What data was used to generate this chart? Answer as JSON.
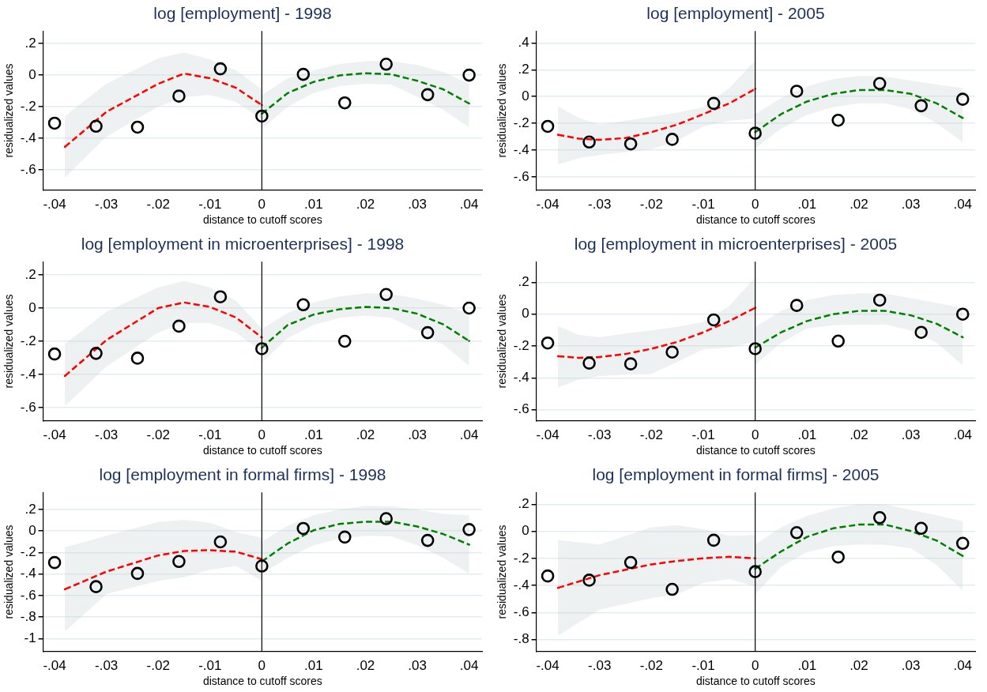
{
  "chart_data": [
    {
      "type": "scatter",
      "title": "log [employment] - 1998",
      "xlabel": "distance to cutoff scores",
      "ylabel": "residualized values",
      "xlim": [
        -0.0422,
        0.0425
      ],
      "ylim": [
        -0.73,
        0.28
      ],
      "xticks": [
        {
          "value": -0.04,
          "label": "-.04"
        },
        {
          "value": -0.03,
          "label": "-.03"
        },
        {
          "value": -0.02,
          "label": "-.02"
        },
        {
          "value": -0.01,
          "label": "-.01"
        },
        {
          "value": 0,
          "label": "0"
        },
        {
          "value": 0.01,
          "label": ".01"
        },
        {
          "value": 0.02,
          "label": ".02"
        },
        {
          "value": 0.03,
          "label": ".03"
        },
        {
          "value": 0.04,
          "label": ".04"
        }
      ],
      "yticks": [
        {
          "value": -0.6,
          "label": "-.6"
        },
        {
          "value": -0.4,
          "label": "-.4"
        },
        {
          "value": -0.2,
          "label": "-.2"
        },
        {
          "value": 0,
          "label": "0"
        },
        {
          "value": 0.2,
          "label": ".2"
        }
      ],
      "grid": "y",
      "legend": false,
      "ref_lines": [
        {
          "axis": "x",
          "value": 0,
          "color": "#000000"
        }
      ],
      "series": [
        {
          "type": "scatter",
          "marker": "circle",
          "color": "#000000",
          "x": [
            -0.04,
            -0.032,
            -0.024,
            -0.016,
            -0.008,
            0,
            0.008,
            0.016,
            0.024,
            0.032,
            0.04
          ],
          "values": [
            -0.305,
            -0.324,
            -0.33,
            -0.133,
            0.04,
            -0.26,
            0.005,
            -0.176,
            0.069,
            -0.124,
            0
          ]
        },
        {
          "type": "line",
          "marker": "none",
          "line_style": "dashed",
          "color": "#ff0000",
          "x": [
            -0.038,
            -0.03,
            -0.02,
            -0.015,
            -0.01,
            -0.005,
            0
          ],
          "values": [
            -0.455,
            -0.233,
            -0.055,
            0.01,
            -0.02,
            -0.08,
            -0.19
          ],
          "lower": [
            -0.65,
            -0.39,
            -0.2,
            -0.14,
            -0.126,
            -0.17,
            -0.28
          ],
          "upper": [
            -0.26,
            -0.055,
            0.107,
            0.143,
            0.1,
            0.03,
            -0.09
          ]
        },
        {
          "type": "line",
          "marker": "none",
          "line_style": "dashed",
          "color": "#008000",
          "x": [
            0,
            0.005,
            0.01,
            0.015,
            0.02,
            0.025,
            0.03,
            0.035,
            0.04
          ],
          "values": [
            -0.245,
            -0.114,
            -0.043,
            -0.002,
            0.012,
            0.005,
            -0.036,
            -0.09,
            -0.18
          ],
          "lower": [
            -0.34,
            -0.2,
            -0.114,
            -0.07,
            -0.055,
            -0.06,
            -0.138,
            -0.22,
            -0.33
          ],
          "upper": [
            -0.126,
            -0.02,
            0.03,
            0.07,
            0.088,
            0.09,
            0.064,
            0.02,
            -0.055
          ]
        }
      ]
    },
    {
      "type": "scatter",
      "title": "log [employment] - 2005",
      "xlabel": "distance to cutoff scores",
      "ylabel": "residualized values",
      "xlim": [
        -0.0422,
        0.0424
      ],
      "ylim": [
        -0.7,
        0.49
      ],
      "xticks": [
        {
          "value": -0.04,
          "label": "-.04"
        },
        {
          "value": -0.03,
          "label": "-.03"
        },
        {
          "value": -0.02,
          "label": "-.02"
        },
        {
          "value": -0.01,
          "label": "-.01"
        },
        {
          "value": 0,
          "label": "0"
        },
        {
          "value": 0.01,
          "label": ".01"
        },
        {
          "value": 0.02,
          "label": ".02"
        },
        {
          "value": 0.03,
          "label": ".03"
        },
        {
          "value": 0.04,
          "label": ".04"
        }
      ],
      "yticks": [
        {
          "value": -0.6,
          "label": "-.6"
        },
        {
          "value": -0.4,
          "label": "-.4"
        },
        {
          "value": -0.2,
          "label": "-.2"
        },
        {
          "value": 0,
          "label": "0"
        },
        {
          "value": 0.2,
          "label": ".2"
        },
        {
          "value": 0.4,
          "label": ".4"
        }
      ],
      "grid": "y",
      "legend": false,
      "ref_lines": [
        {
          "axis": "x",
          "value": 0,
          "color": "#000000"
        }
      ],
      "series": [
        {
          "type": "scatter",
          "marker": "circle",
          "color": "#000000",
          "x": [
            -0.04,
            -0.032,
            -0.024,
            -0.016,
            -0.008,
            0,
            0.008,
            0.016,
            0.024,
            0.032,
            0.04
          ],
          "values": [
            -0.223,
            -0.34,
            -0.354,
            -0.32,
            -0.051,
            -0.274,
            0.04,
            -0.177,
            0.097,
            -0.069,
            -0.02
          ]
        },
        {
          "type": "line",
          "marker": "none",
          "line_style": "dashed",
          "color": "#ff0000",
          "x": [
            -0.038,
            -0.034,
            -0.03,
            -0.025,
            -0.02,
            -0.015,
            -0.01,
            -0.005,
            0
          ],
          "values": [
            -0.286,
            -0.314,
            -0.323,
            -0.31,
            -0.266,
            -0.209,
            -0.131,
            -0.051,
            0.057
          ],
          "lower": [
            -0.509,
            -0.46,
            -0.437,
            -0.415,
            -0.394,
            -0.33,
            -0.223,
            -0.18,
            -0.166
          ],
          "upper": [
            -0.074,
            -0.16,
            -0.209,
            -0.18,
            -0.151,
            -0.12,
            -0.08,
            0.063,
            0.269
          ]
        },
        {
          "type": "line",
          "marker": "none",
          "line_style": "dashed",
          "color": "#008000",
          "x": [
            0,
            0.005,
            0.01,
            0.015,
            0.02,
            0.025,
            0.03,
            0.035,
            0.04
          ],
          "values": [
            -0.266,
            -0.131,
            -0.037,
            0.02,
            0.049,
            0.049,
            0.02,
            -0.051,
            -0.16
          ],
          "lower": [
            -0.389,
            -0.24,
            -0.137,
            -0.08,
            -0.051,
            -0.05,
            -0.094,
            -0.2,
            -0.343
          ],
          "upper": [
            -0.131,
            -0.01,
            0.077,
            0.13,
            0.154,
            0.15,
            0.12,
            0.09,
            0.063
          ]
        }
      ]
    },
    {
      "type": "scatter",
      "title": "log [employment in microenterprises] - 1998",
      "xlabel": "distance to cutoff scores",
      "ylabel": "residualized values",
      "xlim": [
        -0.0422,
        0.0425
      ],
      "ylim": [
        -0.68,
        0.28
      ],
      "xticks": [
        {
          "value": -0.04,
          "label": "-.04"
        },
        {
          "value": -0.03,
          "label": "-.03"
        },
        {
          "value": -0.02,
          "label": "-.02"
        },
        {
          "value": -0.01,
          "label": "-.01"
        },
        {
          "value": 0,
          "label": "0"
        },
        {
          "value": 0.01,
          "label": ".01"
        },
        {
          "value": 0.02,
          "label": ".02"
        },
        {
          "value": 0.03,
          "label": ".03"
        },
        {
          "value": 0.04,
          "label": ".04"
        }
      ],
      "yticks": [
        {
          "value": -0.6,
          "label": "-.6"
        },
        {
          "value": -0.4,
          "label": "-.4"
        },
        {
          "value": -0.2,
          "label": "-.2"
        },
        {
          "value": 0,
          "label": "0"
        },
        {
          "value": 0.2,
          "label": ".2"
        }
      ],
      "grid": "y",
      "legend": false,
      "ref_lines": [
        {
          "axis": "x",
          "value": 0,
          "color": "#000000"
        }
      ],
      "series": [
        {
          "type": "scatter",
          "marker": "circle",
          "color": "#000000",
          "x": [
            -0.04,
            -0.032,
            -0.024,
            -0.016,
            -0.008,
            0,
            0.008,
            0.016,
            0.024,
            0.032,
            0.04
          ],
          "values": [
            -0.277,
            -0.273,
            -0.302,
            -0.109,
            0.068,
            -0.245,
            0.02,
            -0.2,
            0.082,
            -0.148,
            0
          ]
        },
        {
          "type": "line",
          "marker": "none",
          "line_style": "dashed",
          "color": "#ff0000",
          "x": [
            -0.038,
            -0.03,
            -0.02,
            -0.015,
            -0.01,
            -0.005,
            0
          ],
          "values": [
            -0.409,
            -0.193,
            0,
            0.034,
            0.007,
            -0.057,
            -0.177
          ],
          "lower": [
            -0.591,
            -0.352,
            -0.148,
            -0.091,
            -0.091,
            -0.148,
            -0.261
          ],
          "upper": [
            -0.216,
            -0.023,
            0.125,
            0.164,
            0.125,
            0.045,
            -0.125
          ]
        },
        {
          "type": "line",
          "marker": "none",
          "line_style": "dashed",
          "color": "#008000",
          "x": [
            0,
            0.005,
            0.01,
            0.015,
            0.02,
            0.025,
            0.03,
            0.035,
            0.04
          ],
          "values": [
            -0.239,
            -0.102,
            -0.039,
            -0.007,
            0.007,
            0,
            -0.034,
            -0.098,
            -0.198
          ],
          "lower": [
            -0.33,
            -0.18,
            -0.102,
            -0.06,
            -0.045,
            -0.06,
            -0.136,
            -0.22,
            -0.348
          ],
          "upper": [
            -0.125,
            -0.03,
            0.034,
            0.07,
            0.089,
            0.085,
            0.057,
            0.02,
            -0.034
          ]
        }
      ]
    },
    {
      "type": "scatter",
      "title": "log [employment in microenterprises] - 2005",
      "xlabel": "distance to cutoff scores",
      "ylabel": "residualized values",
      "xlim": [
        -0.0422,
        0.0424
      ],
      "ylim": [
        -0.67,
        0.33
      ],
      "xticks": [
        {
          "value": -0.04,
          "label": "-.04"
        },
        {
          "value": -0.03,
          "label": "-.03"
        },
        {
          "value": -0.02,
          "label": "-.02"
        },
        {
          "value": -0.01,
          "label": "-.01"
        },
        {
          "value": 0,
          "label": "0"
        },
        {
          "value": 0.01,
          "label": ".01"
        },
        {
          "value": 0.02,
          "label": ".02"
        },
        {
          "value": 0.03,
          "label": ".03"
        },
        {
          "value": 0.04,
          "label": ".04"
        }
      ],
      "yticks": [
        {
          "value": -0.6,
          "label": "-.6"
        },
        {
          "value": -0.4,
          "label": "-.4"
        },
        {
          "value": -0.2,
          "label": "-.2"
        },
        {
          "value": 0,
          "label": "0"
        },
        {
          "value": 0.2,
          "label": ".2"
        }
      ],
      "grid": "y",
      "legend": false,
      "ref_lines": [
        {
          "axis": "x",
          "value": 0,
          "color": "#000000"
        }
      ],
      "series": [
        {
          "type": "scatter",
          "marker": "circle",
          "color": "#000000",
          "x": [
            -0.04,
            -0.032,
            -0.024,
            -0.016,
            -0.008,
            0,
            0.008,
            0.016,
            0.024,
            0.032,
            0.04
          ],
          "values": [
            -0.181,
            -0.307,
            -0.312,
            -0.238,
            -0.036,
            -0.217,
            0.055,
            -0.169,
            0.088,
            -0.114,
            0
          ]
        },
        {
          "type": "line",
          "marker": "none",
          "line_style": "dashed",
          "color": "#ff0000",
          "x": [
            -0.038,
            -0.034,
            -0.03,
            -0.025,
            -0.02,
            -0.015,
            -0.01,
            -0.005,
            0
          ],
          "values": [
            -0.264,
            -0.274,
            -0.269,
            -0.25,
            -0.217,
            -0.174,
            -0.114,
            -0.043,
            0.04
          ],
          "lower": [
            -0.46,
            -0.41,
            -0.388,
            -0.38,
            -0.376,
            -0.3,
            -0.221,
            -0.21,
            -0.174
          ],
          "upper": [
            -0.074,
            -0.13,
            -0.145,
            -0.12,
            -0.102,
            -0.08,
            -0.05,
            0.052,
            0.231
          ]
        },
        {
          "type": "line",
          "marker": "none",
          "line_style": "dashed",
          "color": "#008000",
          "x": [
            0,
            0.005,
            0.01,
            0.015,
            0.02,
            0.025,
            0.03,
            0.035,
            0.04
          ],
          "values": [
            -0.21,
            -0.114,
            -0.043,
            0,
            0.021,
            0.021,
            -0.007,
            -0.06,
            -0.145
          ],
          "lower": [
            -0.317,
            -0.18,
            -0.09,
            -0.07,
            -0.067,
            -0.065,
            -0.102,
            -0.18,
            -0.321
          ],
          "upper": [
            -0.079,
            0.02,
            0.088,
            0.12,
            0.131,
            0.13,
            0.1,
            0.07,
            0.04
          ]
        }
      ]
    },
    {
      "type": "scatter",
      "title": "log [employment in formal firms] - 1998",
      "xlabel": "distance to cutoff scores",
      "ylabel": "residualized values",
      "xlim": [
        -0.0422,
        0.0425
      ],
      "ylim": [
        -1.12,
        0.36
      ],
      "xticks": [
        {
          "value": -0.04,
          "label": "-.04"
        },
        {
          "value": -0.03,
          "label": "-.03"
        },
        {
          "value": -0.02,
          "label": "-.02"
        },
        {
          "value": -0.01,
          "label": "-.01"
        },
        {
          "value": 0,
          "label": "0"
        },
        {
          "value": 0.01,
          "label": ".01"
        },
        {
          "value": 0.02,
          "label": ".02"
        },
        {
          "value": 0.03,
          "label": ".03"
        },
        {
          "value": 0.04,
          "label": ".04"
        }
      ],
      "yticks": [
        -1,
        {
          "value": -0.8,
          "label": "-.8"
        },
        {
          "value": -0.6,
          "label": "-.6"
        },
        {
          "value": -0.4,
          "label": "-.4"
        },
        {
          "value": -0.2,
          "label": "-.2"
        },
        {
          "value": 0,
          "label": "0"
        },
        {
          "value": 0.2,
          "label": ".2"
        }
      ],
      "grid": "y",
      "legend": false,
      "ref_lines": [
        {
          "axis": "x",
          "value": 0,
          "color": "#000000"
        }
      ],
      "series": [
        {
          "type": "scatter",
          "marker": "circle",
          "color": "#000000",
          "x": [
            -0.04,
            -0.032,
            -0.024,
            -0.016,
            -0.008,
            0,
            0.008,
            0.016,
            0.024,
            0.032,
            0.04
          ],
          "values": [
            -0.293,
            -0.517,
            -0.394,
            -0.283,
            -0.101,
            -0.325,
            0.024,
            -0.056,
            0.115,
            -0.087,
            0.014
          ]
        },
        {
          "type": "line",
          "marker": "none",
          "line_style": "dashed",
          "color": "#ff0000",
          "x": [
            -0.038,
            -0.03,
            -0.02,
            -0.015,
            -0.01,
            -0.005,
            0
          ],
          "values": [
            -0.541,
            -0.377,
            -0.227,
            -0.185,
            -0.178,
            -0.192,
            -0.262
          ],
          "lower": [
            -0.935,
            -0.586,
            -0.464,
            -0.429,
            -0.36,
            -0.325,
            -0.464
          ],
          "upper": [
            -0.15,
            -0.045,
            0.084,
            0.105,
            0.077,
            -0.01,
            -0.063
          ]
        },
        {
          "type": "line",
          "marker": "none",
          "line_style": "dashed",
          "color": "#008000",
          "x": [
            0,
            0.005,
            0.01,
            0.015,
            0.02,
            0.025,
            0.03,
            0.035,
            0.04
          ],
          "values": [
            -0.283,
            -0.115,
            0.007,
            0.066,
            0.087,
            0.087,
            0.042,
            -0.028,
            -0.126
          ],
          "lower": [
            -0.394,
            -0.25,
            -0.133,
            -0.07,
            -0.045,
            -0.05,
            -0.133,
            -0.25,
            -0.394
          ],
          "upper": [
            -0.098,
            0.05,
            0.147,
            0.2,
            0.234,
            0.23,
            0.199,
            0.16,
            0.147
          ]
        }
      ]
    },
    {
      "type": "scatter",
      "title": "log [employment in formal firms] - 2005",
      "xlabel": "distance to cutoff scores",
      "ylabel": "residualized values",
      "xlim": [
        -0.0422,
        0.0424
      ],
      "ylim": [
        -0.89,
        0.29
      ],
      "xticks": [
        {
          "value": -0.04,
          "label": "-.04"
        },
        {
          "value": -0.03,
          "label": "-.03"
        },
        {
          "value": -0.02,
          "label": "-.02"
        },
        {
          "value": -0.01,
          "label": "-.01"
        },
        {
          "value": 0,
          "label": "0"
        },
        {
          "value": 0.01,
          "label": ".01"
        },
        {
          "value": 0.02,
          "label": ".02"
        },
        {
          "value": 0.03,
          "label": ".03"
        },
        {
          "value": 0.04,
          "label": ".04"
        }
      ],
      "yticks": [
        {
          "value": -0.8,
          "label": "-.8"
        },
        {
          "value": -0.6,
          "label": "-.6"
        },
        {
          "value": -0.4,
          "label": "-.4"
        },
        {
          "value": -0.2,
          "label": "-.2"
        },
        {
          "value": 0,
          "label": "0"
        },
        {
          "value": 0.2,
          "label": ".2"
        }
      ],
      "grid": "y",
      "legend": false,
      "ref_lines": [
        {
          "axis": "x",
          "value": 0,
          "color": "#000000"
        }
      ],
      "series": [
        {
          "type": "scatter",
          "marker": "circle",
          "color": "#000000",
          "x": [
            -0.04,
            -0.032,
            -0.024,
            -0.016,
            -0.008,
            0,
            0.008,
            0.016,
            0.024,
            0.032,
            0.04
          ],
          "values": [
            -0.33,
            -0.361,
            -0.23,
            -0.429,
            -0.065,
            -0.298,
            -0.009,
            -0.19,
            0.102,
            0.023,
            -0.088
          ]
        },
        {
          "type": "line",
          "marker": "none",
          "line_style": "dashed",
          "color": "#ff0000",
          "x": [
            -0.038,
            -0.03,
            -0.02,
            -0.015,
            -0.01,
            -0.005,
            0
          ],
          "values": [
            -0.418,
            -0.324,
            -0.244,
            -0.219,
            -0.199,
            -0.188,
            -0.199
          ],
          "lower": [
            -0.773,
            -0.58,
            -0.494,
            -0.466,
            -0.381,
            -0.352,
            -0.409
          ],
          "upper": [
            -0.063,
            -0.097,
            0.031,
            0.045,
            0.017,
            -0.034,
            -0.026
          ]
        },
        {
          "type": "line",
          "marker": "none",
          "line_style": "dashed",
          "color": "#008000",
          "x": [
            0,
            0.005,
            0.01,
            0.015,
            0.02,
            0.025,
            0.03,
            0.035,
            0.04
          ],
          "values": [
            -0.276,
            -0.148,
            -0.04,
            0.023,
            0.051,
            0.051,
            0.003,
            -0.068,
            -0.182
          ],
          "lower": [
            -0.466,
            -0.26,
            -0.153,
            -0.11,
            -0.097,
            -0.1,
            -0.125,
            -0.25,
            -0.437
          ],
          "upper": [
            -0.097,
            0.03,
            0.116,
            0.17,
            0.202,
            0.2,
            0.159,
            0.12,
            0.074
          ]
        }
      ]
    }
  ]
}
